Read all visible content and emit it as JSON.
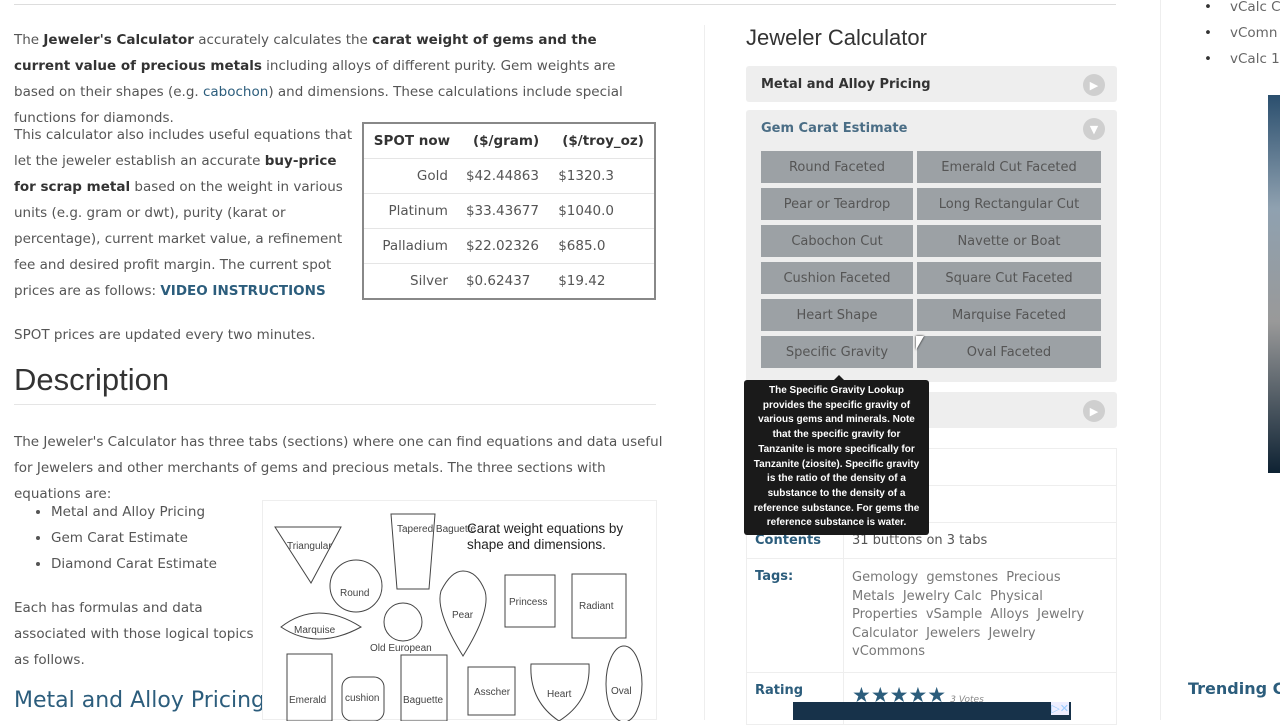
{
  "intro": {
    "p1_parts": [
      "The ",
      "Jeweler's Calculator",
      " accurately calculates the ",
      "carat weight of gems and the current value of precious metals",
      " including alloys of different purity.  Gem weights are based on their shapes (e.g. ",
      "cabochon",
      ") and dimensions.  These calculations include special functions for diamonds."
    ],
    "p2_parts": [
      "This calculator also includes useful equations that let the jeweler establish an accurate ",
      "buy-price for scrap metal",
      " based on the weight in various units (e.g. gram or dwt), purity (karat or percentage), current market value, a refinement fee and desired profit margin.",
      "  The current spot prices are as follows:  ",
      "VIDEO INSTRUCTIONS"
    ],
    "p3": "SPOT prices are updated every two minutes."
  },
  "spot_table": {
    "headers": [
      "SPOT now",
      "($/gram)",
      "($/troy_oz)"
    ],
    "rows": [
      [
        "Gold",
        "$42.44863",
        "$1320.3"
      ],
      [
        "Platinum",
        "$33.43677",
        "$1040.0"
      ],
      [
        "Palladium",
        "$22.02326",
        "$685.0"
      ],
      [
        "Silver",
        "$0.62437",
        "$19.42"
      ]
    ]
  },
  "description": {
    "title": "Description",
    "text": "The Jeweler's Calculator  has three tabs (sections) where one can find equations and data useful for Jewelers and other merchants of gems and precious metals. The three sections with equations are:",
    "sections": [
      "Metal and Alloy Pricing",
      "Gem Carat Estimate",
      "Diamond Carat Estimate"
    ],
    "followup": "Each has formulas and data associated with those logical topics as follows.",
    "subheading": "Metal and Alloy Pricing"
  },
  "gem_image": {
    "caption": "Carat weight equations by shape and dimensions.",
    "labels": [
      "Triangular",
      "Tapered Baguette",
      "Round",
      "Marquise",
      "Old European",
      "Pear",
      "Princess",
      "Radiant",
      "Emerald",
      "cushion",
      "Baguette",
      "Asscher",
      "Heart",
      "Oval"
    ]
  },
  "calculator": {
    "title": "Jeweler Calculator",
    "tab1": "Metal and Alloy Pricing",
    "tab2": "Gem Carat Estimate",
    "buttons": [
      "Round Faceted",
      "Emerald Cut Faceted",
      "Pear or Teardrop",
      "Long Rectangular Cut",
      "Cabochon Cut",
      "Navette or Boat",
      "Cushion Faceted",
      "Square Cut Faceted",
      "Heart Shape",
      "Marquise Faceted",
      "Specific Gravity",
      "Oval Faceted"
    ],
    "tooltip": "The Specific Gravity Lookup provides the specific gravity of various gems and minerals. Note that the specific gravity for Tanzanite is more specifically for Tanzanite (ziosite). Specific gravity is the ratio of the density of a substance to the density of a reference substance. For gems the reference substance is water."
  },
  "info": {
    "contents_label": "Contents",
    "contents": "31 buttons on 3 tabs",
    "tags_label": "Tags:",
    "tags": [
      "Gemology",
      "gemstones",
      "Precious Metals",
      "Jewelry Calc",
      "Physical Properties",
      "vSample",
      "Alloys",
      "Jewelry Calculator",
      "Jewelers",
      "Jewelry",
      "vCommons"
    ],
    "rating_label": "Rating",
    "rating": 5,
    "votes": "3 Votes"
  },
  "right": {
    "items": [
      "vCalc C",
      "vComn",
      "vCalc 1"
    ],
    "trending": "Trending C"
  },
  "colors": {
    "accent": "#2c5d7c",
    "button": "#9ca1a5"
  }
}
